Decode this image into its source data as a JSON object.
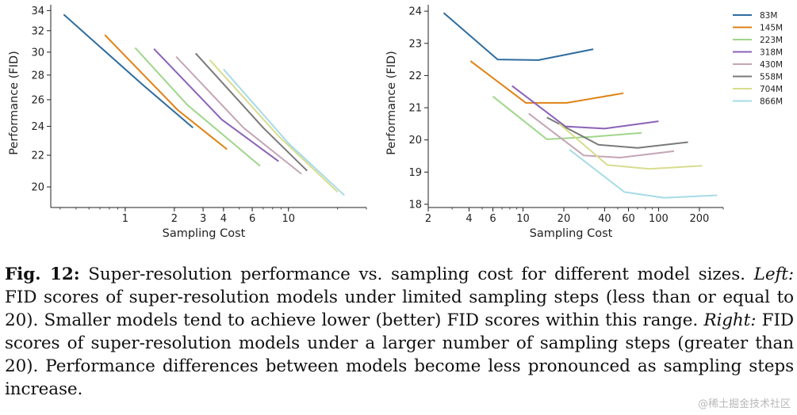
{
  "chart_data": [
    {
      "type": "line",
      "title": "",
      "xlabel": "Sampling Cost",
      "ylabel": "Performance (FID)",
      "xscale": "log",
      "yscale": "log",
      "xlim": [
        0.35,
        30
      ],
      "ylim": [
        18.8,
        34.6
      ],
      "xticks": [
        1,
        2,
        3,
        4,
        6,
        10
      ],
      "xtick_labels": [
        "1",
        "2",
        "3",
        "4",
        "6",
        "10"
      ],
      "yticks": [
        20,
        22,
        24,
        26,
        28,
        30,
        32,
        34
      ],
      "ytick_labels": [
        "20",
        "22",
        "24",
        "26",
        "28",
        "30",
        "32",
        "34"
      ],
      "grid": false,
      "series": [
        {
          "name": "83M",
          "color": "#2e6c9e",
          "x": [
            0.42,
            1.28,
            2.6
          ],
          "y": [
            33.6,
            27.2,
            23.9
          ]
        },
        {
          "name": "145M",
          "color": "#e08214",
          "x": [
            0.75,
            2.1,
            4.2
          ],
          "y": [
            31.6,
            25.2,
            22.4
          ]
        },
        {
          "name": "223M",
          "color": "#9fd68a",
          "x": [
            1.15,
            2.4,
            6.7
          ],
          "y": [
            30.4,
            25.6,
            21.3
          ]
        },
        {
          "name": "318M",
          "color": "#8b62b8",
          "x": [
            1.5,
            3.9,
            8.7
          ],
          "y": [
            30.3,
            24.5,
            21.6
          ]
        },
        {
          "name": "430M",
          "color": "#c4a5b5",
          "x": [
            2.05,
            5.3,
            12.0
          ],
          "y": [
            29.6,
            23.9,
            20.8
          ]
        },
        {
          "name": "558M",
          "color": "#7a7a7a",
          "x": [
            2.7,
            7.0,
            13.0
          ],
          "y": [
            29.9,
            23.9,
            21.0
          ]
        },
        {
          "name": "704M",
          "color": "#d8dc8e",
          "x": [
            3.3,
            8.7,
            20.0
          ],
          "y": [
            29.3,
            23.3,
            19.7
          ]
        },
        {
          "name": "866M",
          "color": "#a6dbe6",
          "x": [
            4.0,
            10.0,
            22.0
          ],
          "y": [
            28.5,
            22.8,
            19.5
          ]
        }
      ]
    },
    {
      "type": "line",
      "title": "",
      "xlabel": "Sampling Cost",
      "ylabel": "Performance (FID)",
      "xscale": "log",
      "yscale": "linear",
      "xlim": [
        2,
        300
      ],
      "ylim": [
        17.9,
        24.2
      ],
      "xticks": [
        2,
        4,
        6,
        10,
        20,
        40,
        60,
        100,
        200
      ],
      "xtick_labels": [
        "2",
        "4",
        "6",
        "10",
        "20",
        "40",
        "60",
        "100",
        "200"
      ],
      "yticks": [
        18,
        19,
        20,
        21,
        22,
        23,
        24
      ],
      "ytick_labels": [
        "18",
        "19",
        "20",
        "21",
        "22",
        "23",
        "24"
      ],
      "grid": false,
      "legend": "top-right",
      "series": [
        {
          "name": "83M",
          "color": "#2e6c9e",
          "x": [
            2.6,
            6.5,
            13,
            33
          ],
          "y": [
            23.95,
            22.5,
            22.48,
            22.82
          ]
        },
        {
          "name": "145M",
          "color": "#e08214",
          "x": [
            4.1,
            10.5,
            21,
            55
          ],
          "y": [
            22.45,
            21.15,
            21.15,
            21.45
          ]
        },
        {
          "name": "223M",
          "color": "#9fd68a",
          "x": [
            6,
            15,
            33,
            75
          ],
          "y": [
            21.35,
            20.02,
            20.1,
            20.22
          ]
        },
        {
          "name": "318M",
          "color": "#8b62b8",
          "x": [
            8.3,
            20.5,
            40,
            100
          ],
          "y": [
            21.68,
            20.42,
            20.35,
            20.58
          ]
        },
        {
          "name": "430M",
          "color": "#c4a5b5",
          "x": [
            11,
            28,
            52,
            130
          ],
          "y": [
            20.82,
            19.52,
            19.45,
            19.65
          ]
        },
        {
          "name": "558M",
          "color": "#7a7a7a",
          "x": [
            15,
            36,
            70,
            165
          ],
          "y": [
            20.7,
            19.85,
            19.75,
            19.93
          ]
        },
        {
          "name": "704M",
          "color": "#d8dc8e",
          "x": [
            18.5,
            42,
            86,
            210
          ],
          "y": [
            20.5,
            19.22,
            19.1,
            19.2
          ]
        },
        {
          "name": "866M",
          "color": "#a6dbe6",
          "x": [
            22,
            56,
            110,
            270
          ],
          "y": [
            19.7,
            18.38,
            18.2,
            18.28
          ]
        }
      ]
    }
  ],
  "caption": {
    "label": "Fig. 12:",
    "part1": " Super-resolution performance vs. sampling cost for different model sizes. ",
    "left_label": "Left:",
    "part2": " FID scores of super-resolution models under limited sampling steps (less than or equal to 20). Smaller models tend to achieve lower (better) FID scores within this range. ",
    "right_label": "Right:",
    "part3": " FID scores of super-resolution models under a larger number of sampling steps (greater than 20). Performance differences between models become less pronounced as sampling steps increase."
  },
  "watermark": "@稀土掘金技术社区"
}
